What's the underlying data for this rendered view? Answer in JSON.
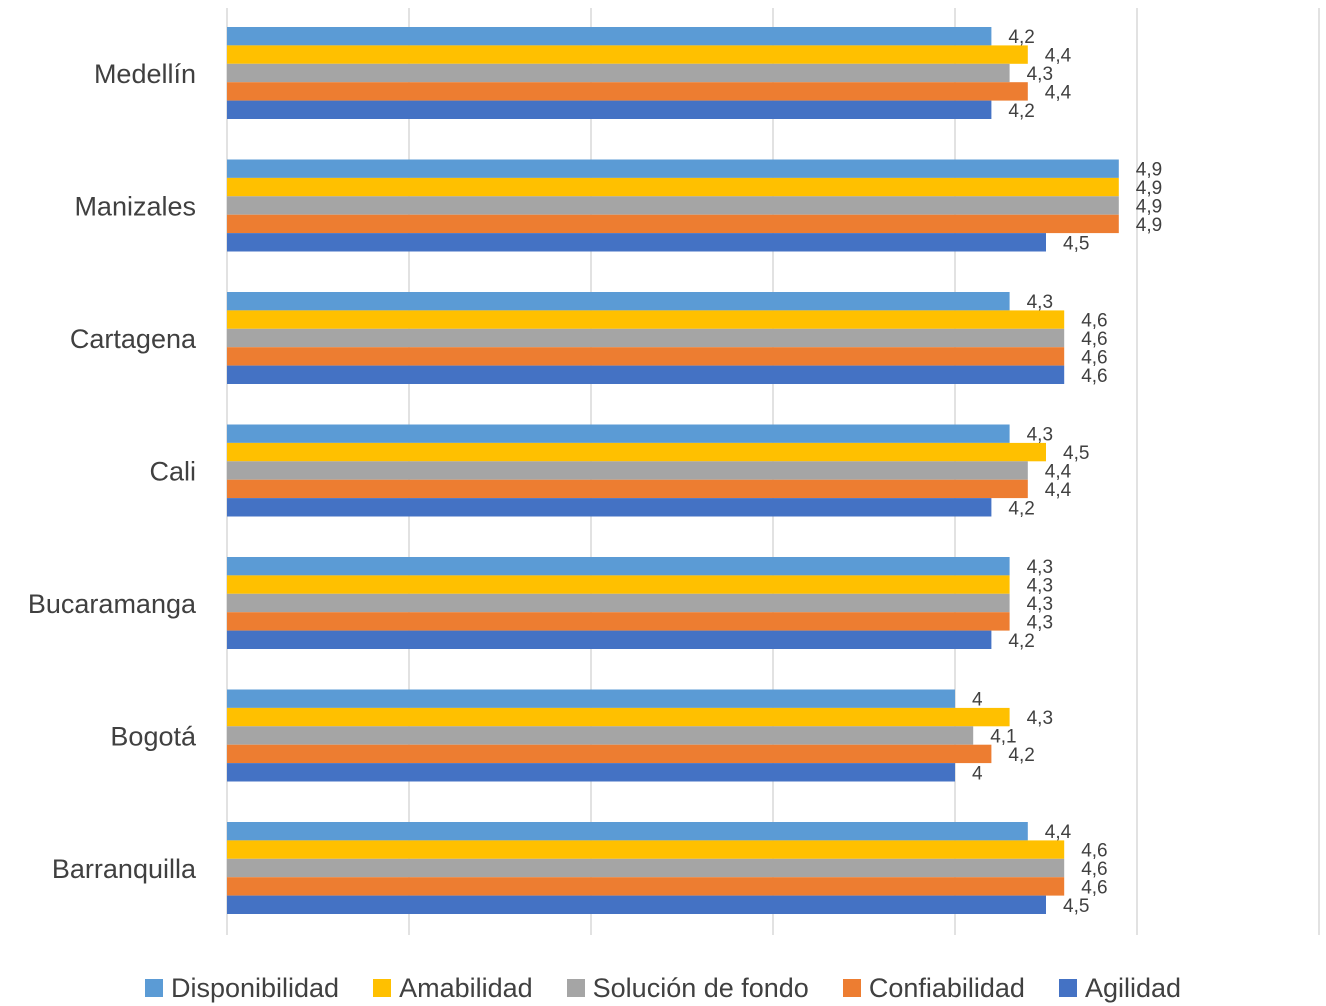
{
  "chart_data": {
    "type": "bar",
    "orientation": "horizontal",
    "categories": [
      "Medellín",
      "Manizales",
      "Cartagena",
      "Cali",
      "Bucaramanga",
      "Bogotá",
      "Barranquilla"
    ],
    "series": [
      {
        "name": "Disponibilidad",
        "color": "#5B9BD5",
        "values": [
          4.2,
          4.9,
          4.3,
          4.3,
          4.3,
          4.0,
          4.4
        ],
        "labels": [
          "4,2",
          "4,9",
          "4,3",
          "4,3",
          "4,3",
          "4",
          "4,4"
        ]
      },
      {
        "name": "Amabilidad",
        "color": "#FFC000",
        "values": [
          4.4,
          4.9,
          4.6,
          4.5,
          4.3,
          4.3,
          4.6
        ],
        "labels": [
          "4,4",
          "4,9",
          "4,6",
          "4,5",
          "4,3",
          "4,3",
          "4,6"
        ]
      },
      {
        "name": "Solución de fondo",
        "color": "#A5A5A5",
        "values": [
          4.3,
          4.9,
          4.6,
          4.4,
          4.3,
          4.1,
          4.6
        ],
        "labels": [
          "4,3",
          "4,9",
          "4,6",
          "4,4",
          "4,3",
          "4,1",
          "4,6"
        ]
      },
      {
        "name": "Confiabilidad",
        "color": "#ED7D31",
        "values": [
          4.4,
          4.9,
          4.6,
          4.4,
          4.3,
          4.2,
          4.6
        ],
        "labels": [
          "4,4",
          "4,9",
          "4,6",
          "4,4",
          "4,3",
          "4,2",
          "4,6"
        ]
      },
      {
        "name": "Agilidad",
        "color": "#4472C4",
        "values": [
          4.2,
          4.5,
          4.6,
          4.2,
          4.2,
          4.0,
          4.5
        ],
        "labels": [
          "4,2",
          "4,5",
          "4,6",
          "4,2",
          "4,2",
          "4",
          "4,5"
        ]
      }
    ],
    "xlim": [
      0,
      6
    ],
    "grid": true,
    "legend_position": "bottom",
    "title": "",
    "xlabel": "",
    "ylabel": ""
  }
}
